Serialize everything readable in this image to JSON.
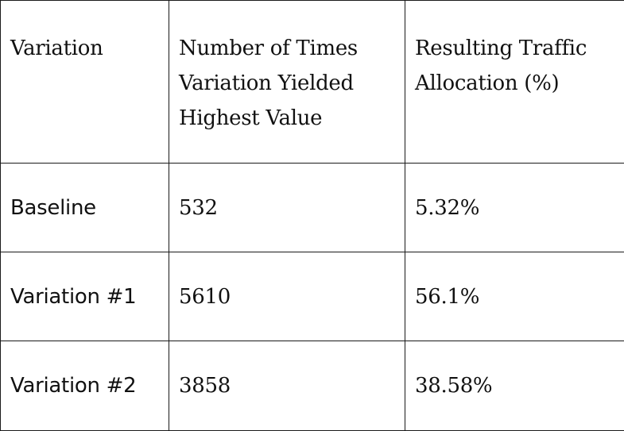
{
  "table": {
    "headers": [
      "Variation",
      "Number of Times Variation Yielded Highest Value",
      "Resulting Traffic Allocation (%)"
    ],
    "rows": [
      {
        "variation": "Baseline",
        "times_highest": "532",
        "traffic_allocation": "5.32%"
      },
      {
        "variation": "Variation #1",
        "times_highest": "5610",
        "traffic_allocation": "56.1%"
      },
      {
        "variation": "Variation #2",
        "times_highest": "3858",
        "traffic_allocation": "38.58%"
      }
    ]
  }
}
